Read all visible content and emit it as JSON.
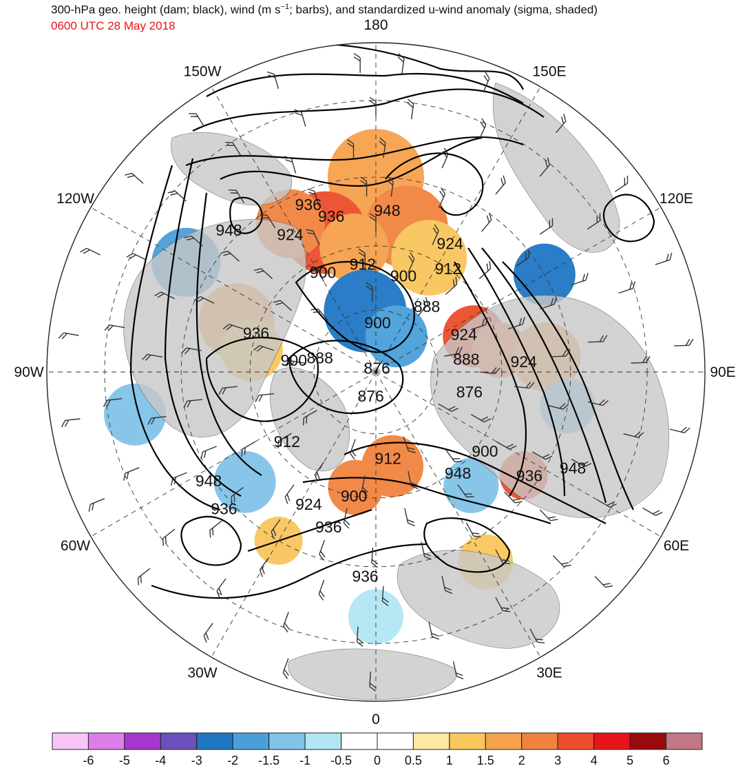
{
  "header": {
    "title_parts": {
      "a": "300-hPa geo. height (dam; black), wind (m s",
      "sup": "−1",
      "b": "; barbs), and standardized u-wind anomaly (sigma, shaded)"
    },
    "subtitle": "0600 UTC 28 May 2018"
  },
  "map": {
    "projection": "north-polar-stereographic",
    "longitude_labels": [
      {
        "lon": 180,
        "text": "180"
      },
      {
        "lon": 150,
        "text": "150E"
      },
      {
        "lon": 120,
        "text": "120E"
      },
      {
        "lon": 90,
        "text": "90E"
      },
      {
        "lon": 60,
        "text": "60E"
      },
      {
        "lon": 30,
        "text": "30E"
      },
      {
        "lon": 0,
        "text": "0"
      },
      {
        "lon": -30,
        "text": "30W"
      },
      {
        "lon": -60,
        "text": "60W"
      },
      {
        "lon": -90,
        "text": "90W"
      },
      {
        "lon": -120,
        "text": "120W"
      },
      {
        "lon": -150,
        "text": "150W"
      }
    ],
    "height_contour_labels": [
      {
        "text": "948",
        "lon": 176,
        "lat": 52
      },
      {
        "text": "924",
        "lon": 150,
        "lat": 55
      },
      {
        "text": "900",
        "lon": 164,
        "lat": 66
      },
      {
        "text": "912",
        "lon": 145,
        "lat": 60
      },
      {
        "text": "888",
        "lon": 142,
        "lat": 70
      },
      {
        "text": "936",
        "lon": -164,
        "lat": 52
      },
      {
        "text": "936",
        "lon": -158,
        "lat": 48
      },
      {
        "text": "924",
        "lon": -148,
        "lat": 52
      },
      {
        "text": "912",
        "lon": -173,
        "lat": 64
      },
      {
        "text": "900",
        "lon": -152,
        "lat": 63
      },
      {
        "text": "948",
        "lon": -134,
        "lat": 43
      },
      {
        "text": "900",
        "lon": 178,
        "lat": 78
      },
      {
        "text": "924",
        "lon": 113,
        "lat": 67
      },
      {
        "text": "888",
        "lon": 98,
        "lat": 68
      },
      {
        "text": "924",
        "lon": 94,
        "lat": 55
      },
      {
        "text": "876",
        "lon": 78,
        "lat": 67
      },
      {
        "text": "900",
        "lon": 54,
        "lat": 58
      },
      {
        "text": "936",
        "lon": 56,
        "lat": 47
      },
      {
        "text": "948",
        "lon": 64,
        "lat": 40
      },
      {
        "text": "948",
        "lon": 39,
        "lat": 59
      },
      {
        "text": "912",
        "lon": 8,
        "lat": 69
      },
      {
        "text": "900",
        "lon": -10,
        "lat": 60
      },
      {
        "text": "924",
        "lon": -27,
        "lat": 55
      },
      {
        "text": "936",
        "lon": -17,
        "lat": 52
      },
      {
        "text": "936",
        "lon": -3,
        "lat": 43
      },
      {
        "text": "876",
        "lon": 164,
        "lat": 89
      },
      {
        "text": "876",
        "lon": -12,
        "lat": 84
      },
      {
        "text": "888",
        "lon": -104,
        "lat": 76
      },
      {
        "text": "900",
        "lon": -98,
        "lat": 70
      },
      {
        "text": "936",
        "lon": -108,
        "lat": 60
      },
      {
        "text": "912",
        "lon": -52,
        "lat": 63
      },
      {
        "text": "948",
        "lon": -57,
        "lat": 44
      },
      {
        "text": "936",
        "lon": -48,
        "lat": 43
      }
    ],
    "colors": {
      "land": "#c8c8c8",
      "ocean": "#ffffff",
      "contour": "#000000",
      "grid": "#333333"
    }
  },
  "colorbar": {
    "bins": [
      {
        "lo": -7,
        "hi": -6,
        "color": "#f7c6f7"
      },
      {
        "lo": -6,
        "hi": -5,
        "color": "#dd7ee8"
      },
      {
        "lo": -5,
        "hi": -4,
        "color": "#a636d0"
      },
      {
        "lo": -4,
        "hi": -3,
        "color": "#6a4fbd"
      },
      {
        "lo": -3,
        "hi": -2,
        "color": "#1f77c4"
      },
      {
        "lo": -2,
        "hi": -1.5,
        "color": "#4a9fdb"
      },
      {
        "lo": -1.5,
        "hi": -1,
        "color": "#82c3e8"
      },
      {
        "lo": -1,
        "hi": -0.5,
        "color": "#b2e6f4"
      },
      {
        "lo": -0.5,
        "hi": 0,
        "color": "#ffffff"
      },
      {
        "lo": 0,
        "hi": 0.5,
        "color": "#ffffff"
      },
      {
        "lo": 0.5,
        "hi": 1,
        "color": "#fde9a3"
      },
      {
        "lo": 1,
        "hi": 1.5,
        "color": "#f9c65c"
      },
      {
        "lo": 1.5,
        "hi": 2,
        "color": "#f6a14c"
      },
      {
        "lo": 2,
        "hi": 3,
        "color": "#f1833f"
      },
      {
        "lo": 3,
        "hi": 4,
        "color": "#ec4d2a"
      },
      {
        "lo": 4,
        "hi": 5,
        "color": "#e8141b"
      },
      {
        "lo": 5,
        "hi": 6,
        "color": "#9b0a0e"
      },
      {
        "lo": 6,
        "hi": 7,
        "color": "#c17785"
      }
    ],
    "tick_labels": [
      "-6",
      "-5",
      "-4",
      "-3",
      "-2",
      "-1.5",
      "-1",
      "-0.5",
      "0",
      "0.5",
      "1",
      "1.5",
      "2",
      "3",
      "4",
      "5",
      "6"
    ]
  }
}
